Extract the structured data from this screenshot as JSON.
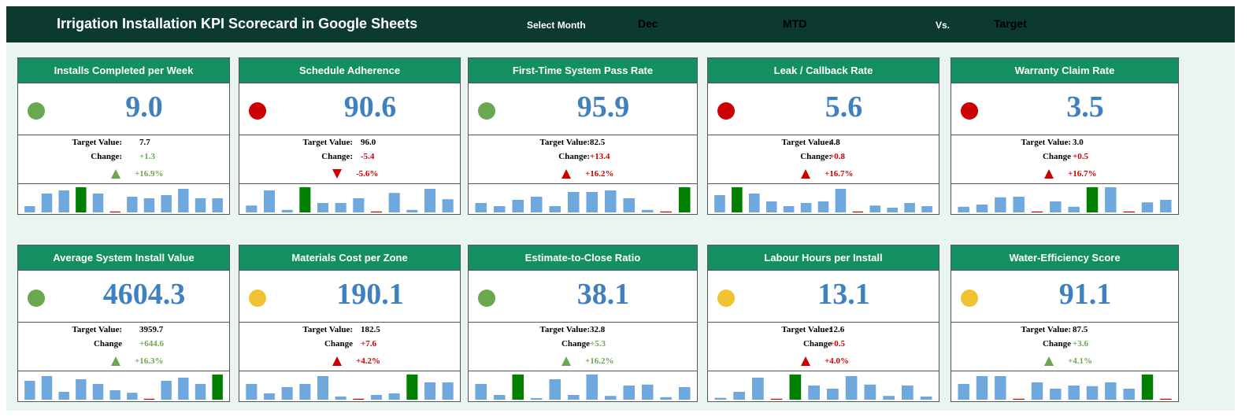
{
  "header": {
    "title": "Irrigation Installation KPI Scorecard in Google Sheets",
    "select_month_label": "Select Month",
    "month": "Dec",
    "period": "MTD",
    "vs_label": "Vs.",
    "compare": "Target"
  },
  "colors": {
    "header_bg": "#0c3a2e",
    "card_header": "#138f62",
    "value_blue": "#3f80c1",
    "green": "#6aa84f",
    "red": "#cc0000",
    "yellow": "#f1c232",
    "bar_blue": "#6fa8dc",
    "bar_green": "#007f00"
  },
  "cards": [
    {
      "title": "Installs Completed per Week",
      "value": "9.0",
      "status": "green",
      "target_label": "Target Value:",
      "target": "7.7",
      "change_label": "Change:",
      "change": "+1.3",
      "direction": "up",
      "trend": "good",
      "pct": "+16.9%",
      "spark": [
        2,
        6,
        7,
        8,
        6,
        0.3,
        5,
        4.5,
        5.5,
        7.5,
        4.5,
        4.5
      ],
      "highlight": 3
    },
    {
      "title": "Schedule Adherence",
      "value": "90.6",
      "status": "red",
      "target_label": "Target Value:",
      "target": "96.0",
      "change_label": "Change:",
      "change": "-5.4",
      "direction": "down",
      "trend": "bad",
      "pct": "-5.6%",
      "spark": [
        2.2,
        7,
        0.8,
        8,
        3,
        3,
        4.5,
        0.3,
        6.2,
        0.8,
        7.5,
        4.2
      ],
      "highlight": 3
    },
    {
      "title": "First-Time System Pass Rate",
      "value": "95.9",
      "status": "green",
      "target_label": "Target Value:",
      "target": "82.5",
      "change_label": "Change:",
      "change": "+13.4",
      "direction": "up",
      "trend": "bad",
      "pct": "+16.2%",
      "spark": [
        3,
        2,
        4,
        5,
        2,
        6.5,
        6.5,
        7,
        4.5,
        0.8,
        0.3,
        8
      ],
      "highlight": 11
    },
    {
      "title": "Leak / Callback Rate",
      "value": "5.6",
      "status": "red",
      "target_label": "Target Value:",
      "target": "4.8",
      "change_label": "Change:",
      "change": "+0.8",
      "direction": "up",
      "trend": "bad",
      "pct": "+16.7%",
      "spark": [
        5.5,
        8,
        6,
        3.5,
        2,
        3,
        3.5,
        7.5,
        0.3,
        2.2,
        1.5,
        3,
        2
      ],
      "highlight": 1
    },
    {
      "title": "Warranty Claim Rate",
      "value": "3.5",
      "status": "red",
      "target_label": "Target Value:",
      "target": "3.0",
      "change_label": "Change",
      "change": "+0.5",
      "direction": "up",
      "trend": "bad",
      "pct": "+16.7%",
      "spark": [
        1.8,
        2.5,
        4.8,
        5,
        0.3,
        3.5,
        1.8,
        8,
        8,
        0.3,
        3.2,
        4
      ],
      "highlight": 7
    },
    {
      "title": "Average System Install Value",
      "value": "4604.3",
      "status": "green",
      "target_label": "Target Value:",
      "target": "3959.7",
      "change_label": "Change",
      "change": "+644.6",
      "direction": "up",
      "trend": "good",
      "pct": "+16.3%",
      "spark": [
        6,
        7.5,
        2.5,
        6.5,
        5,
        3,
        2.2,
        0.3,
        6,
        7,
        5,
        8
      ],
      "highlight": 11
    },
    {
      "title": "Materials Cost per Zone",
      "value": "190.1",
      "status": "yellow",
      "target_label": "Target Value:",
      "target": "182.5",
      "change_label": "Change",
      "change": "+7.6",
      "direction": "up",
      "trend": "bad",
      "pct": "+4.2%",
      "spark": [
        5,
        2,
        4,
        5,
        7.5,
        1,
        0.3,
        1.5,
        2,
        8,
        5.5,
        5.5
      ],
      "highlight": 9
    },
    {
      "title": "Estimate-to-Close Ratio",
      "value": "38.1",
      "status": "green",
      "target_label": "Target Value:",
      "target": "32.8",
      "change_label": "Change",
      "change": "+5.3",
      "direction": "up",
      "trend": "good",
      "pct": "+16.2%",
      "spark": [
        5,
        1.5,
        8,
        0.5,
        6.5,
        1.5,
        8,
        1.2,
        4.5,
        4.8,
        0.8,
        4
      ],
      "highlight": 2
    },
    {
      "title": "Labour Hours per Install",
      "value": "13.1",
      "status": "yellow",
      "target_label": "Target Value:",
      "target": "12.6",
      "change_label": "Change",
      "change": "+0.5",
      "direction": "up",
      "trend": "bad",
      "pct": "+4.0%",
      "spark": [
        0.6,
        2.5,
        7,
        0.3,
        8,
        4.5,
        3.5,
        7.5,
        4.8,
        1.2,
        4.5,
        1
      ],
      "highlight": 4
    },
    {
      "title": "Water-Efficiency Score",
      "value": "91.1",
      "status": "yellow",
      "target_label": "Target Value:",
      "target": "87.5",
      "change_label": "Change",
      "change": "+3.6",
      "direction": "up",
      "trend": "good",
      "pct": "+4.1%",
      "spark": [
        5,
        7.5,
        7.5,
        0.3,
        5.5,
        3.5,
        4.5,
        4.3,
        5.5,
        3.5,
        8,
        0.3
      ],
      "highlight": 10
    }
  ]
}
